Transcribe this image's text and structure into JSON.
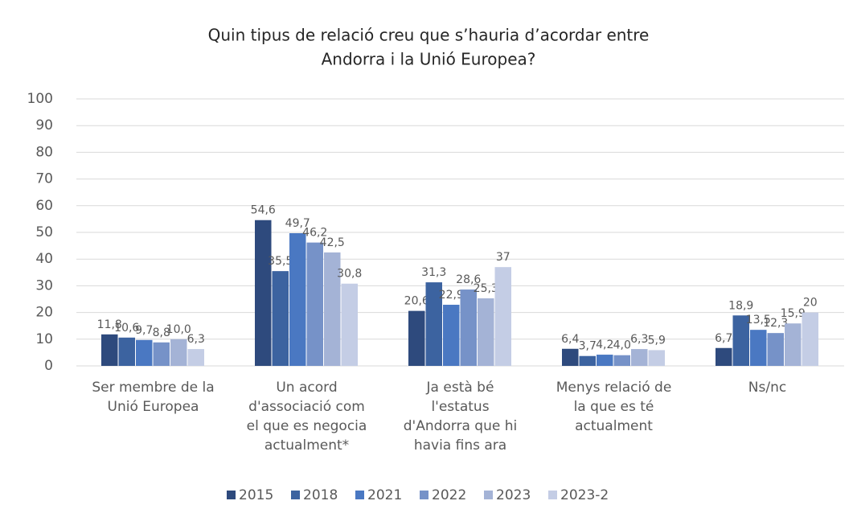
{
  "chart_data": {
    "type": "bar",
    "title": [
      "Quin tipus de relació creu que s’hauria d’acordar entre",
      "Andorra i la Unió Europea?"
    ],
    "categories": [
      [
        "Ser membre de la",
        "Unió Europea"
      ],
      [
        "Un acord",
        "d'associació com",
        "el que es negocia",
        "actualment*"
      ],
      [
        "Ja està bé",
        "l'estatus",
        "d'Andorra que hi",
        "havia fins ara"
      ],
      [
        "Menys relació de",
        "la que es té",
        "actualment"
      ],
      [
        "Ns/nc"
      ]
    ],
    "series": [
      {
        "name": "2015",
        "color": "#2e4a7d",
        "values": [
          11.8,
          54.6,
          20.6,
          6.4,
          6.7
        ],
        "value_labels": [
          "11,8",
          "54,6",
          "20,6",
          "6,4",
          "6,7"
        ]
      },
      {
        "name": "2018",
        "color": "#3c63a0",
        "values": [
          10.6,
          35.5,
          31.3,
          3.7,
          18.9
        ],
        "value_labels": [
          "10,6",
          "35,5",
          "31,3",
          "3,7",
          "18,9"
        ]
      },
      {
        "name": "2021",
        "color": "#4a78c2",
        "values": [
          9.7,
          49.7,
          22.9,
          4.2,
          13.5
        ],
        "value_labels": [
          "9,7",
          "49,7",
          "22,9",
          "4,2",
          "13,5"
        ]
      },
      {
        "name": "2022",
        "color": "#7692c8",
        "values": [
          8.8,
          46.2,
          28.6,
          4.0,
          12.3
        ],
        "value_labels": [
          "8,8",
          "46,2",
          "28,6",
          "4,0",
          "12,3"
        ]
      },
      {
        "name": "2023",
        "color": "#a4b3d6",
        "values": [
          10.0,
          42.5,
          25.3,
          6.3,
          15.9
        ],
        "value_labels": [
          "10,0",
          "42,5",
          "25,3",
          "6,3",
          "15,9"
        ]
      },
      {
        "name": "2023-2",
        "color": "#c4cde5",
        "values": [
          6.3,
          30.8,
          37,
          5.9,
          20
        ],
        "value_labels": [
          "6,3",
          "30,8",
          "37",
          "5,9",
          "20"
        ]
      }
    ],
    "ylim": [
      0,
      100
    ],
    "yticks": [
      0,
      10,
      20,
      30,
      40,
      50,
      60,
      70,
      80,
      90,
      100
    ],
    "grid": true,
    "legend": "bottom"
  }
}
